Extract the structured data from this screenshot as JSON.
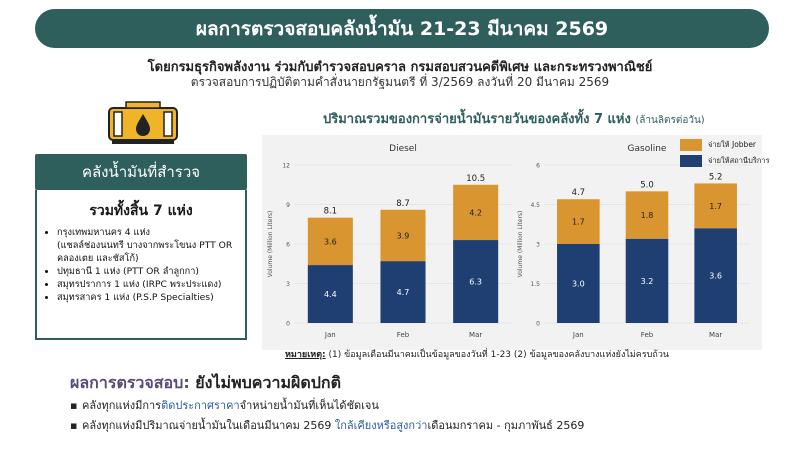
{
  "banner": {
    "title": "ผลการตรวจสอบคลังน้ำมัน 21-23 มีนาคม 2569"
  },
  "subtitle": {
    "line1": "โดยกรมธุรกิจพลังงาน ร่วมกับตำรวจสอบคราล กรมสอบสวนคดีพิเศษ และกระทรวงพาณิชย์",
    "line2": "ตรวจสอบการปฏิบัติตามคำสั่งนายกรัฐมนตรี ที่ 3/2569 ลงวันที่ 20 มีนาคม 2569"
  },
  "left_panel": {
    "header": "คลังน้ำมันที่สำรวจ",
    "total": "รวมทั้งสิ้น 7 แห่ง",
    "items": [
      {
        "text": "กรุงเทพมหานคร 4 แห่ง"
      },
      {
        "text": "(แชลล์ช่องนนทรี บางจากพระโขนง PTT OR คลองเตย และชัสโก้)"
      },
      {
        "text": "ปทุมธานี 1 แห่ง (PTT OR ลำลูกกา)"
      },
      {
        "text": "สมุทรปราการ 1 แห่ง (IRPC พระประแดง)"
      },
      {
        "text": "สมุทรสาคร 1 แห่ง (P.S.P Specialties)"
      }
    ]
  },
  "chart_title": {
    "main": "ปริมาณรวมของการจ่ายน้ำมันรายวันของคลังทั้ง 7 แห่ง",
    "unit": "(ล้านลิตรต่อวัน)"
  },
  "legend": {
    "jobber": "จ่ายให้ Jobber",
    "station": "จ่ายให้สถานีบริการ"
  },
  "colors": {
    "jobber": "#d9952f",
    "station": "#1f3f73",
    "accent": "#2f5f5c"
  },
  "chart_data": [
    {
      "type": "bar",
      "title": "Diesel",
      "ylabel": "Volume (Million Liters)",
      "categories": [
        "Jan",
        "Feb",
        "Mar"
      ],
      "ylim": [
        0,
        12
      ],
      "yticks": [
        "0",
        "3",
        "6",
        "9",
        "12"
      ],
      "stacked": true,
      "series": [
        {
          "name": "จ่ายให้สถานีบริการ",
          "values": [
            4.4,
            4.7,
            6.3
          ],
          "labels": [
            "4.4",
            "4.7",
            "6.3"
          ]
        },
        {
          "name": "จ่ายให้ Jobber",
          "values": [
            3.6,
            3.9,
            4.2
          ],
          "labels": [
            "3.6",
            "3.9",
            "4.2"
          ]
        }
      ],
      "totals": [
        "8.1",
        "8.7",
        "10.5"
      ]
    },
    {
      "type": "bar",
      "title": "Gasoline",
      "ylabel": "Volume (Million Liters)",
      "categories": [
        "Jan",
        "Feb",
        "Mar"
      ],
      "ylim": [
        0,
        6
      ],
      "yticks": [
        "0",
        "1.5",
        "3",
        "4.5",
        "6"
      ],
      "stacked": true,
      "series": [
        {
          "name": "จ่ายให้สถานีบริการ",
          "values": [
            3.0,
            3.2,
            3.6
          ],
          "labels": [
            "3.0",
            "3.2",
            "3.6"
          ]
        },
        {
          "name": "จ่ายให้ Jobber",
          "values": [
            1.7,
            1.8,
            1.7
          ],
          "labels": [
            "1.7",
            "1.8",
            "1.7"
          ]
        }
      ],
      "totals": [
        "4.7",
        "5.0",
        "5.2"
      ]
    }
  ],
  "footnote": {
    "label": "หมายเหตุ:",
    "text": " (1) ข้อมูลเดือนมีนาคมเป็นข้อมูลของวันที่ 1-23 (2) ข้อมูลของคลังบางแห่งยังไม่ครบถ้วน"
  },
  "result": {
    "label": "ผลการตรวจสอบ:",
    "value": " ยังไม่พบความผิดปกติ",
    "b1_pre": "คลังทุกแห่งมีการ",
    "b1_hl": "ติดประกาศราคา",
    "b1_post": "จำหน่ายน้ำมันที่เห็นได้ชัดเจน",
    "b2_pre": "คลังทุกแห่งมีปริมาณจ่ายน้ำมันในเดือนมีนาคม 2569 ",
    "b2_hl": "ใกล้เคียงหรือสูงกว่า",
    "b2_post": "เดือนมกราคม - กุมภาพันธ์ 2569"
  },
  "icons": {
    "storage": "oil-tank-icon"
  }
}
